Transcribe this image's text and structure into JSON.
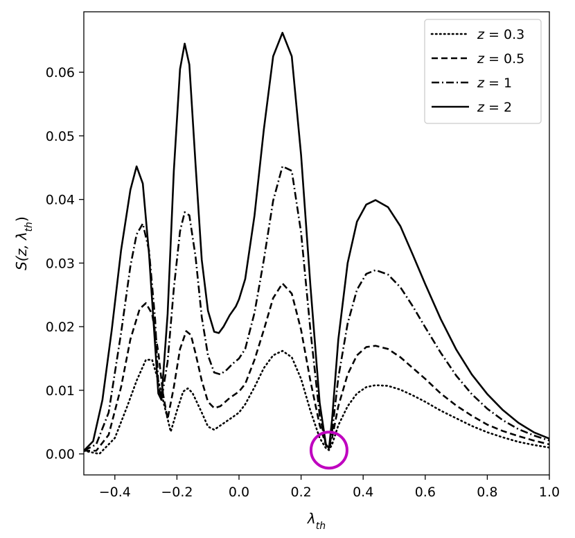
{
  "chart_data": {
    "type": "line",
    "xlabel": "λ_th",
    "ylabel": "S(z, λ_th)",
    "xlim": [
      -0.5,
      1.0
    ],
    "ylim": [
      -0.0033,
      0.0695
    ],
    "xticks": [
      -0.4,
      -0.2,
      0.0,
      0.2,
      0.4,
      0.6,
      0.8,
      1.0
    ],
    "xtick_labels": [
      "−0.4",
      "−0.2",
      "0.0",
      "0.2",
      "0.4",
      "0.6",
      "0.8",
      "1.0"
    ],
    "yticks": [
      0.0,
      0.01,
      0.02,
      0.03,
      0.04,
      0.05,
      0.06
    ],
    "ytick_labels": [
      "0.00",
      "0.01",
      "0.02",
      "0.03",
      "0.04",
      "0.05",
      "0.06"
    ],
    "grid": false,
    "legend_position": "top-right",
    "marker": {
      "shape": "circle",
      "color": "#bf00bf",
      "x": 0.29,
      "y": 0.0006
    },
    "series": [
      {
        "name": "z = 0.3",
        "legend_prefix": "z",
        "legend_value": "= 0.3",
        "style": "dotted",
        "color": "#000000",
        "x": [
          -0.5,
          -0.45,
          -0.4,
          -0.36,
          -0.33,
          -0.3,
          -0.28,
          -0.26,
          -0.24,
          -0.22,
          -0.2,
          -0.18,
          -0.165,
          -0.15,
          -0.12,
          -0.1,
          -0.08,
          -0.05,
          -0.02,
          0.0,
          0.02,
          0.05,
          0.08,
          0.11,
          0.14,
          0.17,
          0.2,
          0.23,
          0.26,
          0.28,
          0.29,
          0.3,
          0.32,
          0.35,
          0.38,
          0.41,
          0.44,
          0.48,
          0.52,
          0.56,
          0.6,
          0.65,
          0.7,
          0.75,
          0.8,
          0.85,
          0.9,
          0.95,
          1.0
        ],
        "y": [
          0.0005,
          0.0,
          0.0025,
          0.0075,
          0.0115,
          0.0148,
          0.0148,
          0.0115,
          0.0075,
          0.0035,
          0.0068,
          0.0098,
          0.0103,
          0.0096,
          0.0065,
          0.0043,
          0.0038,
          0.0048,
          0.0058,
          0.0065,
          0.0078,
          0.0105,
          0.0135,
          0.0155,
          0.0162,
          0.0152,
          0.0118,
          0.0068,
          0.0025,
          0.0009,
          0.0006,
          0.0015,
          0.0045,
          0.0075,
          0.0095,
          0.0105,
          0.0108,
          0.0107,
          0.0101,
          0.0092,
          0.0082,
          0.0068,
          0.0056,
          0.0044,
          0.0034,
          0.0026,
          0.0019,
          0.0014,
          0.001
        ]
      },
      {
        "name": "z = 0.5",
        "legend_prefix": "z",
        "legend_value": "= 0.5",
        "style": "dashed",
        "color": "#000000",
        "x": [
          -0.5,
          -0.46,
          -0.42,
          -0.38,
          -0.35,
          -0.32,
          -0.3,
          -0.28,
          -0.26,
          -0.245,
          -0.23,
          -0.21,
          -0.19,
          -0.17,
          -0.155,
          -0.14,
          -0.12,
          -0.1,
          -0.08,
          -0.06,
          -0.03,
          0.0,
          0.02,
          0.05,
          0.08,
          0.11,
          0.14,
          0.17,
          0.2,
          0.23,
          0.26,
          0.28,
          0.29,
          0.3,
          0.32,
          0.35,
          0.38,
          0.41,
          0.44,
          0.48,
          0.52,
          0.56,
          0.6,
          0.65,
          0.7,
          0.75,
          0.8,
          0.85,
          0.9,
          0.95,
          1.0
        ],
        "y": [
          0.0005,
          0.0005,
          0.003,
          0.0105,
          0.018,
          0.0228,
          0.0237,
          0.022,
          0.016,
          0.0095,
          0.0055,
          0.0105,
          0.0165,
          0.0193,
          0.0187,
          0.0158,
          0.0115,
          0.0082,
          0.0072,
          0.0075,
          0.0088,
          0.0098,
          0.011,
          0.0148,
          0.0195,
          0.0245,
          0.0268,
          0.0252,
          0.0195,
          0.0115,
          0.0045,
          0.0014,
          0.0008,
          0.0025,
          0.0075,
          0.0125,
          0.0155,
          0.0168,
          0.017,
          0.0165,
          0.0152,
          0.0135,
          0.0118,
          0.0095,
          0.0076,
          0.006,
          0.0046,
          0.0036,
          0.0028,
          0.0021,
          0.0015
        ]
      },
      {
        "name": "z = 1",
        "legend_prefix": "z",
        "legend_value": "= 1",
        "style": "dashdot",
        "color": "#000000",
        "x": [
          -0.5,
          -0.46,
          -0.42,
          -0.38,
          -0.35,
          -0.33,
          -0.31,
          -0.29,
          -0.27,
          -0.26,
          -0.25,
          -0.23,
          -0.21,
          -0.19,
          -0.175,
          -0.16,
          -0.14,
          -0.12,
          -0.1,
          -0.08,
          -0.06,
          -0.04,
          -0.02,
          0.0,
          0.02,
          0.05,
          0.08,
          0.11,
          0.14,
          0.17,
          0.2,
          0.23,
          0.26,
          0.28,
          0.29,
          0.3,
          0.32,
          0.35,
          0.38,
          0.41,
          0.44,
          0.48,
          0.52,
          0.56,
          0.6,
          0.65,
          0.7,
          0.75,
          0.8,
          0.85,
          0.9,
          0.95,
          1.0
        ],
        "y": [
          0.0005,
          0.0015,
          0.0065,
          0.019,
          0.0295,
          0.0345,
          0.0362,
          0.032,
          0.021,
          0.011,
          0.0085,
          0.0145,
          0.026,
          0.035,
          0.038,
          0.0375,
          0.031,
          0.0215,
          0.0155,
          0.0128,
          0.0125,
          0.0132,
          0.0142,
          0.015,
          0.0165,
          0.0222,
          0.0305,
          0.0398,
          0.0452,
          0.0445,
          0.0348,
          0.0195,
          0.006,
          0.0015,
          0.0009,
          0.0035,
          0.012,
          0.0205,
          0.0258,
          0.0283,
          0.0289,
          0.0282,
          0.0262,
          0.0232,
          0.0199,
          0.0159,
          0.0123,
          0.0094,
          0.0071,
          0.0053,
          0.0039,
          0.0029,
          0.0021
        ]
      },
      {
        "name": "z = 2",
        "legend_prefix": "z",
        "legend_value": "= 2",
        "style": "solid",
        "color": "#000000",
        "x": [
          -0.5,
          -0.47,
          -0.44,
          -0.41,
          -0.38,
          -0.35,
          -0.33,
          -0.31,
          -0.29,
          -0.275,
          -0.26,
          -0.25,
          -0.23,
          -0.21,
          -0.19,
          -0.175,
          -0.16,
          -0.14,
          -0.12,
          -0.1,
          -0.08,
          -0.065,
          -0.05,
          -0.03,
          -0.01,
          0.0,
          0.02,
          0.05,
          0.08,
          0.11,
          0.14,
          0.17,
          0.2,
          0.23,
          0.26,
          0.28,
          0.29,
          0.3,
          0.32,
          0.35,
          0.38,
          0.41,
          0.44,
          0.48,
          0.52,
          0.56,
          0.6,
          0.65,
          0.7,
          0.75,
          0.8,
          0.85,
          0.9,
          0.95,
          1.0
        ],
        "y": [
          0.0005,
          0.002,
          0.0085,
          0.0195,
          0.032,
          0.0415,
          0.0452,
          0.0425,
          0.0315,
          0.0205,
          0.0095,
          0.0085,
          0.022,
          0.0445,
          0.0605,
          0.0645,
          0.0612,
          0.0455,
          0.0305,
          0.0225,
          0.0192,
          0.019,
          0.02,
          0.0218,
          0.0232,
          0.0243,
          0.0275,
          0.0375,
          0.051,
          0.0625,
          0.0662,
          0.0625,
          0.047,
          0.0265,
          0.008,
          0.0015,
          0.0009,
          0.0055,
          0.018,
          0.03,
          0.0365,
          0.0392,
          0.0399,
          0.0388,
          0.0358,
          0.0313,
          0.0267,
          0.0212,
          0.0164,
          0.0125,
          0.0094,
          0.0069,
          0.0049,
          0.0034,
          0.0024
        ]
      }
    ]
  }
}
